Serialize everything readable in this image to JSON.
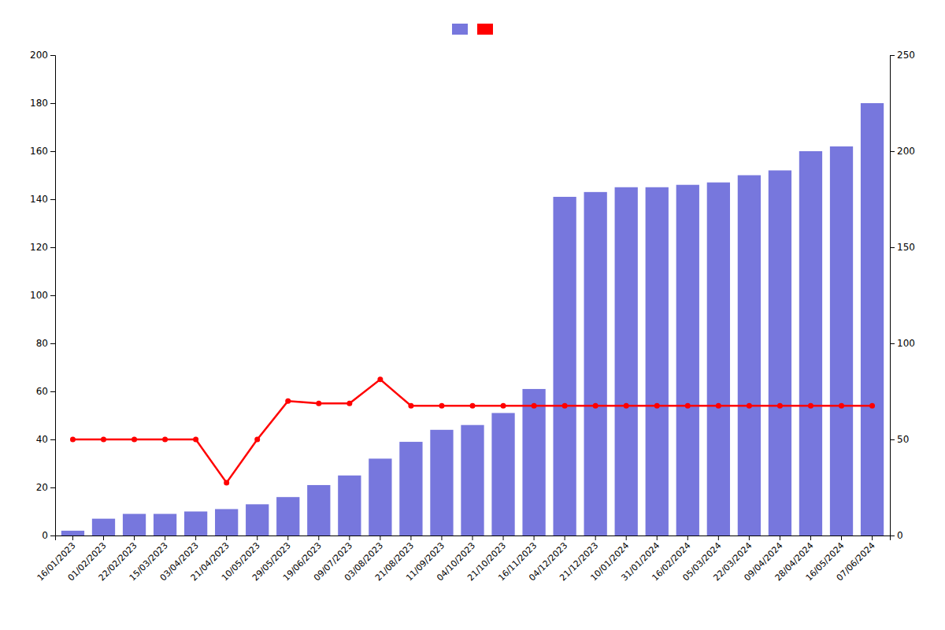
{
  "chart_data": {
    "type": "bar",
    "categories": [
      "16/01/2023",
      "01/02/2023",
      "22/02/2023",
      "15/03/2023",
      "03/04/2023",
      "21/04/2023",
      "10/05/2023",
      "29/05/2023",
      "19/06/2023",
      "09/07/2023",
      "03/08/2023",
      "21/08/2023",
      "11/09/2023",
      "04/10/2023",
      "21/10/2023",
      "16/11/2023",
      "04/12/2023",
      "21/12/2023",
      "10/01/2024",
      "31/01/2024",
      "16/02/2024",
      "05/03/2024",
      "22/03/2024",
      "09/04/2024",
      "28/04/2024",
      "16/05/2024",
      "07/06/2024"
    ],
    "series": [
      {
        "type": "bar",
        "color": "#7777dd",
        "values": [
          2,
          7,
          9,
          9,
          10,
          11,
          13,
          16,
          21,
          25,
          32,
          39,
          44,
          46,
          51,
          61,
          141,
          143,
          145,
          145,
          146,
          147,
          150,
          152,
          160,
          162,
          180
        ]
      },
      {
        "type": "line",
        "color": "#ff0000",
        "marker": "circle",
        "values": [
          40,
          40,
          40,
          40,
          40,
          22,
          40,
          56,
          55,
          55,
          65,
          54,
          54,
          54,
          54,
          54,
          54,
          54,
          54,
          54,
          54,
          54,
          54,
          54,
          54,
          54,
          54
        ]
      }
    ],
    "ylim": [
      0,
      200
    ],
    "yticks": [
      0,
      20,
      40,
      60,
      80,
      100,
      120,
      140,
      160,
      180,
      200
    ],
    "y2lim": [
      0,
      250
    ],
    "y2ticks": [
      0,
      50,
      100,
      150,
      200,
      250
    ],
    "grid": false,
    "legend": "top"
  }
}
